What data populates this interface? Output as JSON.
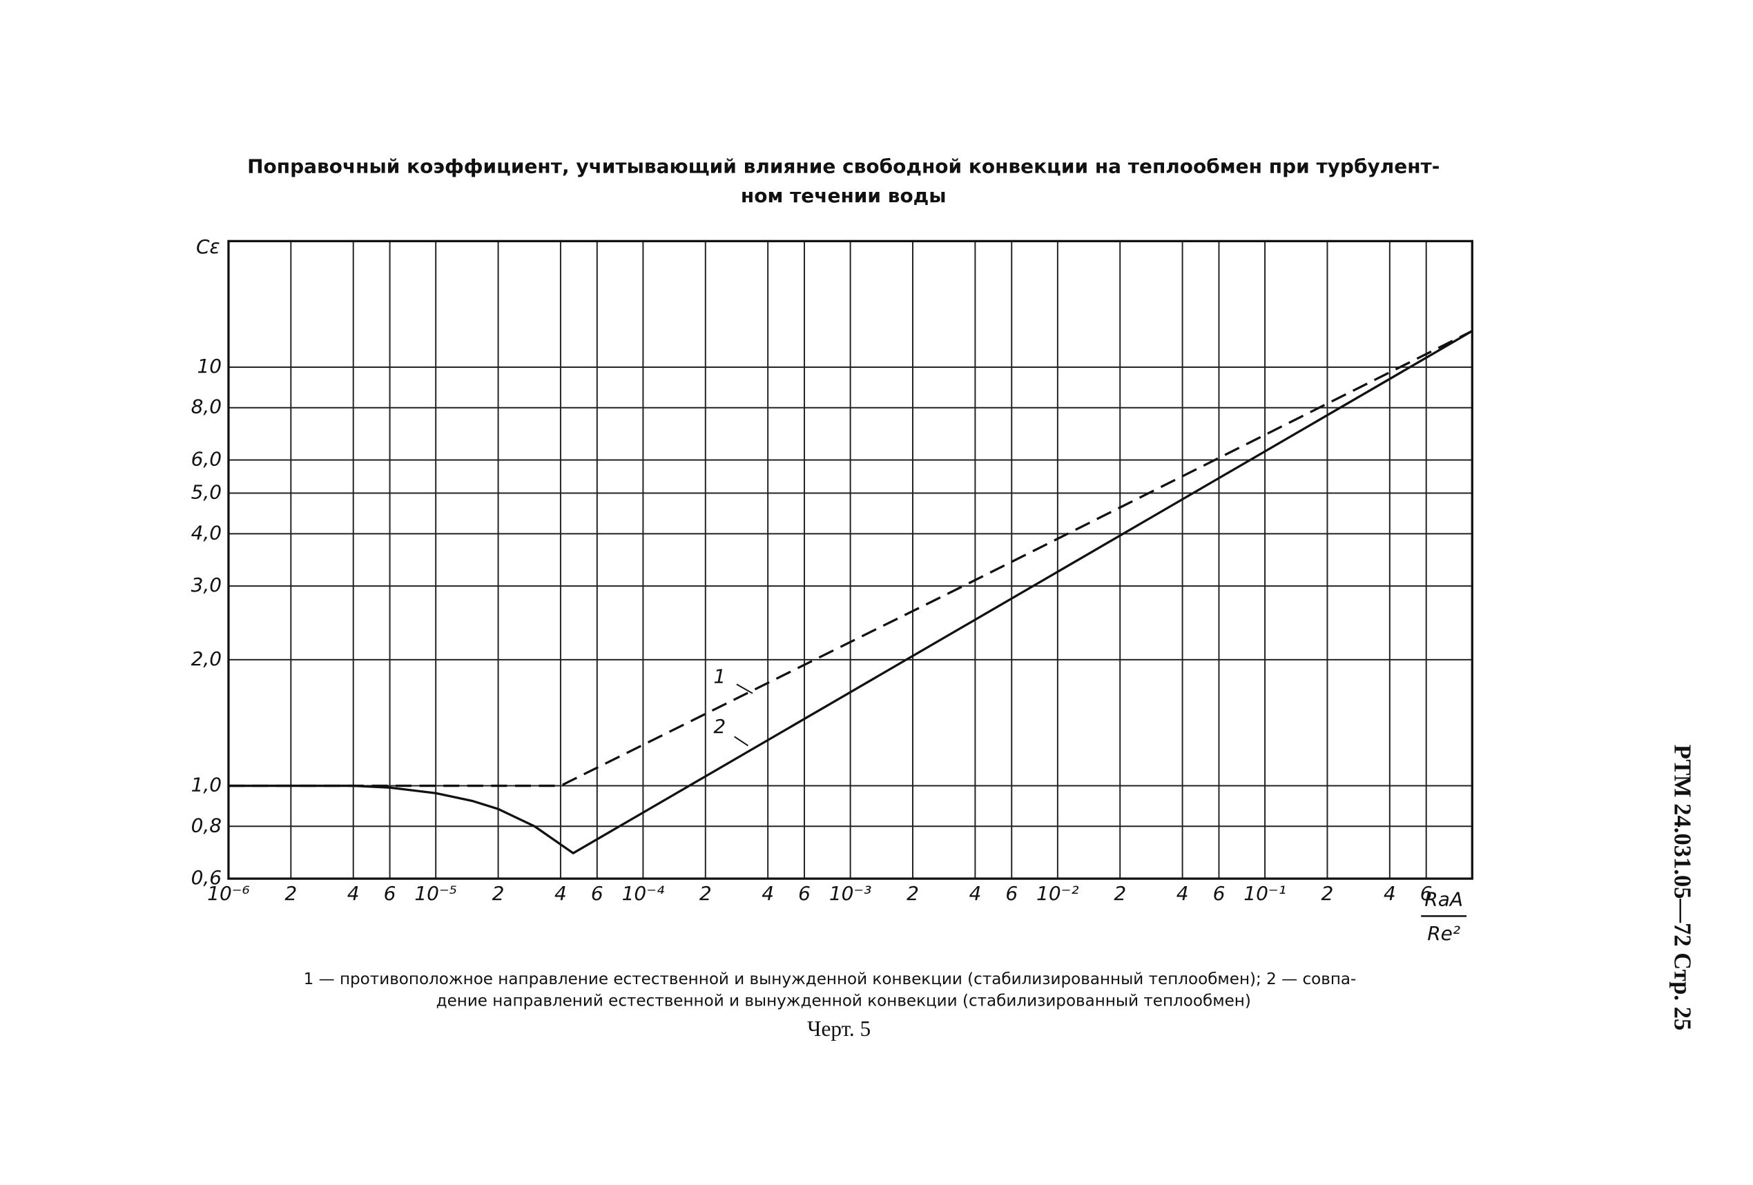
{
  "chart_data": {
    "type": "line",
    "title": [
      "Поправочный коэффициент, учитывающий влияние свободной конвекции на теплообмен при турбулент-",
      "ном течении воды"
    ],
    "y_label": "Cε",
    "x_label_numerator": "RaA",
    "x_label_denominator": "Re²",
    "xscale": "log",
    "yscale": "log",
    "grid": true,
    "xlim": [
      1e-06,
      1
    ],
    "ylim": [
      0.6,
      20
    ],
    "xticks": [
      {
        "value": 1e-06,
        "label": "10⁻⁶"
      },
      {
        "value": 2e-06,
        "label": "2"
      },
      {
        "value": 4e-06,
        "label": "4"
      },
      {
        "value": 6e-06,
        "label": "6"
      },
      {
        "value": 1e-05,
        "label": "10⁻⁵"
      },
      {
        "value": 2e-05,
        "label": "2"
      },
      {
        "value": 4e-05,
        "label": "4"
      },
      {
        "value": 6e-05,
        "label": "6"
      },
      {
        "value": 0.0001,
        "label": "10⁻⁴"
      },
      {
        "value": 0.0002,
        "label": "2"
      },
      {
        "value": 0.0004,
        "label": "4"
      },
      {
        "value": 0.0006,
        "label": "6"
      },
      {
        "value": 0.001,
        "label": "10⁻³"
      },
      {
        "value": 0.002,
        "label": "2"
      },
      {
        "value": 0.004,
        "label": "4"
      },
      {
        "value": 0.006,
        "label": "6"
      },
      {
        "value": 0.01,
        "label": "10⁻²"
      },
      {
        "value": 0.02,
        "label": "2"
      },
      {
        "value": 0.04,
        "label": "4"
      },
      {
        "value": 0.06,
        "label": "6"
      },
      {
        "value": 0.1,
        "label": "10⁻¹"
      },
      {
        "value": 0.2,
        "label": "2"
      },
      {
        "value": 0.4,
        "label": "4"
      },
      {
        "value": 0.6,
        "label": "6"
      }
    ],
    "yticks": [
      {
        "value": 0.6,
        "label": "0,6"
      },
      {
        "value": 0.8,
        "label": "0,8"
      },
      {
        "value": 1,
        "label": "1,0"
      },
      {
        "value": 2,
        "label": "2,0"
      },
      {
        "value": 3,
        "label": "3,0"
      },
      {
        "value": 4,
        "label": "4,0"
      },
      {
        "value": 5,
        "label": "5,0"
      },
      {
        "value": 6,
        "label": "6,0"
      },
      {
        "value": 8,
        "label": "8,0"
      },
      10
    ],
    "series": [
      {
        "name": "1",
        "color": "#111111",
        "dashed": true,
        "x": [
          1e-06,
          4e-05,
          0.004,
          1
        ],
        "values": [
          1,
          1,
          3.1,
          12.2
        ]
      },
      {
        "name": "2",
        "color": "#111111",
        "dashed": false,
        "x": [
          1e-06,
          4e-06,
          6e-06,
          1e-05,
          1.5e-05,
          2e-05,
          3e-05,
          4.6e-05,
          1
        ],
        "values": [
          1,
          1,
          0.99,
          0.96,
          0.92,
          0.88,
          0.8,
          0.69,
          12.2
        ]
      }
    ]
  },
  "caption": [
    "1 — противоположное направление естественной и вынужденной конвекции (стабилизированный теплообмен); 2 — совпа-",
    "дение направлений естественной и вынужденной конвекции (стабилизированный теплообмен)"
  ],
  "figure_label": "Черт. 5",
  "side_text": "РТМ 24.031.05—72   Стр. 25"
}
